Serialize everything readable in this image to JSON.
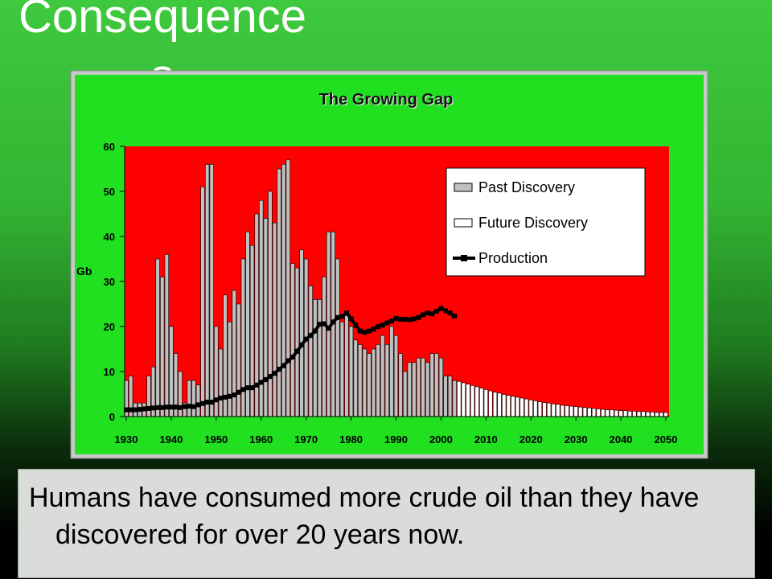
{
  "slide_title": "Consequences",
  "caption": "Humans have consumed more crude oil than they have discovered for over 20 years now.",
  "chart_data": {
    "type": "bar",
    "title": "The Growing Gap",
    "y_label": "Gb",
    "xlim": [
      1930,
      2050
    ],
    "xticks": [
      1930,
      1940,
      1950,
      1960,
      1970,
      1980,
      1990,
      2000,
      2010,
      2020,
      2030,
      2040,
      2050
    ],
    "ylim": [
      0,
      60
    ],
    "yticks": [
      0,
      10,
      20,
      30,
      40,
      50,
      60
    ],
    "legend": "upper right",
    "series": [
      {
        "name": "Past Discovery",
        "type": "bar",
        "color": "#c0c0c0",
        "x": [
          1930,
          1931,
          1932,
          1933,
          1934,
          1935,
          1936,
          1937,
          1938,
          1939,
          1940,
          1941,
          1942,
          1943,
          1944,
          1945,
          1946,
          1947,
          1948,
          1949,
          1950,
          1951,
          1952,
          1953,
          1954,
          1955,
          1956,
          1957,
          1958,
          1959,
          1960,
          1961,
          1962,
          1963,
          1964,
          1965,
          1966,
          1967,
          1968,
          1969,
          1970,
          1971,
          1972,
          1973,
          1974,
          1975,
          1976,
          1977,
          1978,
          1979,
          1980,
          1981,
          1982,
          1983,
          1984,
          1985,
          1986,
          1987,
          1988,
          1989,
          1990,
          1991,
          1992,
          1993,
          1994,
          1995,
          1996,
          1997,
          1998,
          1999,
          2000,
          2001,
          2002,
          2003
        ],
        "values": [
          8,
          9,
          3,
          3,
          3,
          9,
          11,
          35,
          31,
          36,
          20,
          14,
          10,
          3,
          8,
          8,
          7,
          51,
          56,
          56,
          20,
          15,
          27,
          21,
          28,
          25,
          35,
          41,
          38,
          45,
          48,
          44,
          50,
          43,
          55,
          56,
          57,
          34,
          33,
          37,
          35,
          29,
          26,
          26,
          31,
          41,
          41,
          35,
          21,
          23,
          20,
          17,
          16,
          15,
          14,
          15,
          16,
          18,
          16,
          20,
          18,
          14,
          10,
          12,
          12,
          13,
          13,
          12,
          14,
          14,
          13,
          9,
          9,
          8
        ]
      },
      {
        "name": "Future Discovery",
        "type": "bar",
        "color": "#ffffff",
        "x": [
          2004,
          2005,
          2006,
          2007,
          2008,
          2009,
          2010,
          2011,
          2012,
          2013,
          2014,
          2015,
          2016,
          2017,
          2018,
          2019,
          2020,
          2021,
          2022,
          2023,
          2024,
          2025,
          2026,
          2027,
          2028,
          2029,
          2030,
          2031,
          2032,
          2033,
          2034,
          2035,
          2036,
          2037,
          2038,
          2039,
          2040,
          2041,
          2042,
          2043,
          2044,
          2045,
          2046,
          2047,
          2048,
          2049,
          2050
        ],
        "values": [
          7.8,
          7.5,
          7.2,
          6.9,
          6.6,
          6.3,
          6.0,
          5.7,
          5.4,
          5.2,
          4.9,
          4.7,
          4.5,
          4.3,
          4.1,
          3.9,
          3.7,
          3.5,
          3.3,
          3.1,
          3.0,
          2.8,
          2.7,
          2.5,
          2.4,
          2.3,
          2.2,
          2.1,
          2.0,
          1.9,
          1.8,
          1.7,
          1.6,
          1.5,
          1.5,
          1.4,
          1.3,
          1.3,
          1.2,
          1.2,
          1.1,
          1.1,
          1.0,
          1.0,
          0.9,
          0.9,
          0.9
        ]
      },
      {
        "name": "Production",
        "type": "line",
        "color": "#000000",
        "x": [
          1930,
          1931,
          1932,
          1933,
          1934,
          1935,
          1936,
          1937,
          1938,
          1939,
          1940,
          1941,
          1942,
          1943,
          1944,
          1945,
          1946,
          1947,
          1948,
          1949,
          1950,
          1951,
          1952,
          1953,
          1954,
          1955,
          1956,
          1957,
          1958,
          1959,
          1960,
          1961,
          1962,
          1963,
          1964,
          1965,
          1966,
          1967,
          1968,
          1969,
          1970,
          1971,
          1972,
          1973,
          1974,
          1975,
          1976,
          1977,
          1978,
          1979,
          1980,
          1981,
          1982,
          1983,
          1984,
          1985,
          1986,
          1987,
          1988,
          1989,
          1990,
          1991,
          1992,
          1993,
          1994,
          1995,
          1996,
          1997,
          1998,
          1999,
          2000,
          2001,
          2002,
          2003
        ],
        "values": [
          1.5,
          1.5,
          1.5,
          1.6,
          1.7,
          1.8,
          1.9,
          2.0,
          2.0,
          2.1,
          2.1,
          2.1,
          2.0,
          2.2,
          2.3,
          2.2,
          2.6,
          2.9,
          3.2,
          3.2,
          3.7,
          4.1,
          4.3,
          4.5,
          4.8,
          5.4,
          6.0,
          6.4,
          6.4,
          7.0,
          7.6,
          8.2,
          8.9,
          9.6,
          10.5,
          11.3,
          12.4,
          13.2,
          14.5,
          15.9,
          17.2,
          18.0,
          19.0,
          20.5,
          20.6,
          19.6,
          21.0,
          22.0,
          22.2,
          23.0,
          21.7,
          20.3,
          19.0,
          18.7,
          19.0,
          19.4,
          20.0,
          20.3,
          20.8,
          21.2,
          21.8,
          21.6,
          21.6,
          21.5,
          21.7,
          22.0,
          22.6,
          23.0,
          22.8,
          23.4,
          24.0,
          23.5,
          23.0,
          22.3
        ]
      }
    ]
  }
}
